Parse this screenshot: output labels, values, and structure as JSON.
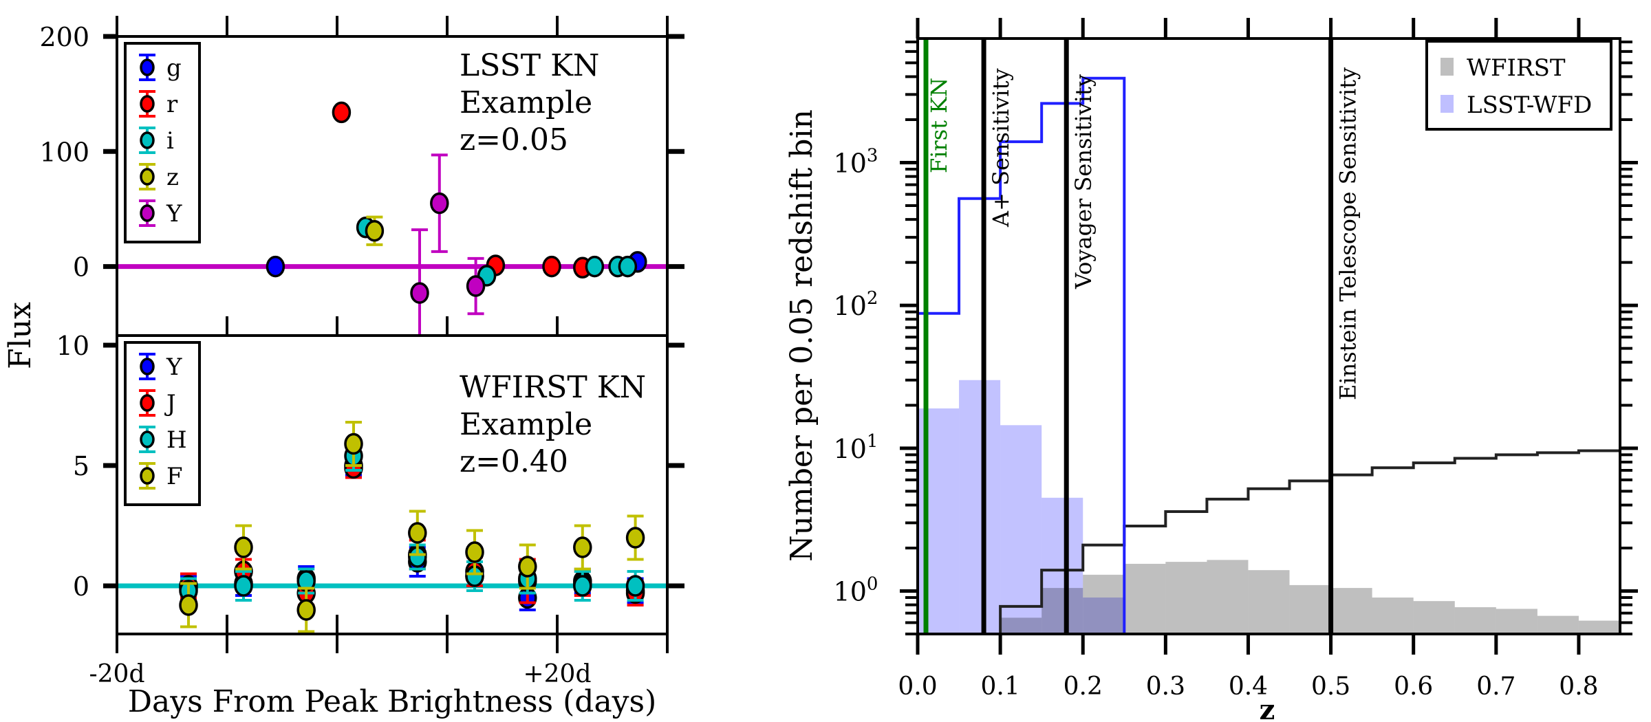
{
  "chart_data": [
    {
      "id": "lsst-lightcurve",
      "type": "scatter",
      "title": "",
      "annotation": [
        "LSST KN",
        "Example",
        "z=0.05"
      ],
      "xlabel": "Days From Peak Brightness (days)",
      "ylabel": "Flux",
      "xlim": [
        -20,
        30
      ],
      "ylim": [
        -60,
        200
      ],
      "xticks": [
        -20,
        -10,
        0,
        10,
        20,
        30
      ],
      "xtick_labels": [
        "-20d",
        "",
        "",
        "",
        "+20d",
        ""
      ],
      "yticks": [
        0,
        100,
        200
      ],
      "ytick_labels": [
        "0",
        "100",
        "200"
      ],
      "zero_line_color": "#c000c0",
      "legend_position": "top-left",
      "series": [
        {
          "name": "g",
          "color": "#0000ff",
          "points": [
            {
              "x": -5.6,
              "y": 0,
              "err": 3
            },
            {
              "x": 27.3,
              "y": 4,
              "err": 3
            }
          ]
        },
        {
          "name": "r",
          "color": "#ff0000",
          "points": [
            {
              "x": 0.4,
              "y": 134,
              "err": 3
            },
            {
              "x": 14.4,
              "y": 1,
              "err": 3
            },
            {
              "x": 19.5,
              "y": 0,
              "err": 3
            },
            {
              "x": 22.3,
              "y": -1,
              "err": 3
            }
          ]
        },
        {
          "name": "i",
          "color": "#00c0c0",
          "points": [
            {
              "x": 2.6,
              "y": 34,
              "err": 4
            },
            {
              "x": 13.6,
              "y": -8,
              "err": 4
            },
            {
              "x": 23.4,
              "y": 0,
              "err": 3
            },
            {
              "x": 25.5,
              "y": 0,
              "err": 3
            },
            {
              "x": 26.4,
              "y": 0,
              "err": 3
            }
          ]
        },
        {
          "name": "z",
          "color": "#c0c000",
          "points": [
            {
              "x": 3.4,
              "y": 31,
              "err": 12
            }
          ]
        },
        {
          "name": "Y",
          "color": "#c000c0",
          "points": [
            {
              "x": 7.5,
              "y": -23,
              "err": 55
            },
            {
              "x": 9.3,
              "y": 55,
              "err": 42
            },
            {
              "x": 12.6,
              "y": -17,
              "err": 24
            }
          ]
        }
      ]
    },
    {
      "id": "wfirst-lightcurve",
      "type": "scatter",
      "title": "",
      "annotation": [
        "WFIRST KN",
        "Example",
        "z=0.40"
      ],
      "xlabel": "Days From Peak Brightness (days)",
      "ylabel": "Flux",
      "xlim": [
        -20,
        30
      ],
      "ylim": [
        -2,
        10.4
      ],
      "xticks": [
        -20,
        -10,
        0,
        10,
        20,
        30
      ],
      "xtick_labels": [
        "-20d",
        "",
        "",
        "",
        "+20d",
        ""
      ],
      "yticks": [
        0,
        5,
        10
      ],
      "ytick_labels": [
        "0",
        "5",
        "10"
      ],
      "zero_line_color": "#00c0c0",
      "legend_position": "top-left",
      "series": [
        {
          "name": "Y",
          "color": "#0000ff",
          "points": [
            {
              "x": -13.5,
              "y": -0.1,
              "err": 0.5
            },
            {
              "x": -8.5,
              "y": 0.1,
              "err": 0.5
            },
            {
              "x": -2.8,
              "y": 0.3,
              "err": 0.5
            },
            {
              "x": 1.5,
              "y": 5.0,
              "err": 0.4
            },
            {
              "x": 7.3,
              "y": 1.0,
              "err": 0.6
            },
            {
              "x": 12.5,
              "y": 0.4,
              "err": 0.6
            },
            {
              "x": 17.3,
              "y": -0.5,
              "err": 0.5
            },
            {
              "x": 22.3,
              "y": 0.2,
              "err": 0.5
            },
            {
              "x": 27.1,
              "y": -0.2,
              "err": 0.5
            }
          ]
        },
        {
          "name": "J",
          "color": "#ff0000",
          "points": [
            {
              "x": -13.5,
              "y": 0.0,
              "err": 0.5
            },
            {
              "x": -8.5,
              "y": 0.6,
              "err": 0.5
            },
            {
              "x": -2.8,
              "y": -0.3,
              "err": 0.5
            },
            {
              "x": 1.5,
              "y": 4.9,
              "err": 0.4
            },
            {
              "x": 7.3,
              "y": 1.3,
              "err": 0.6
            },
            {
              "x": 12.5,
              "y": 0.6,
              "err": 0.6
            },
            {
              "x": 17.3,
              "y": 0.2,
              "err": 0.9
            },
            {
              "x": 22.3,
              "y": 0.1,
              "err": 0.5
            },
            {
              "x": 27.1,
              "y": -0.3,
              "err": 0.5
            }
          ]
        },
        {
          "name": "H",
          "color": "#00c0c0",
          "points": [
            {
              "x": -13.5,
              "y": -0.2,
              "err": 0.5
            },
            {
              "x": -8.5,
              "y": 0.0,
              "err": 0.6
            },
            {
              "x": -2.8,
              "y": 0.2,
              "err": 0.5
            },
            {
              "x": 1.5,
              "y": 5.4,
              "err": 0.6
            },
            {
              "x": 7.3,
              "y": 1.2,
              "err": 0.5
            },
            {
              "x": 12.5,
              "y": 0.4,
              "err": 0.6
            },
            {
              "x": 17.3,
              "y": 0.3,
              "err": 0.6
            },
            {
              "x": 22.3,
              "y": 0.0,
              "err": 0.6
            },
            {
              "x": 27.1,
              "y": 0.0,
              "err": 0.6
            }
          ]
        },
        {
          "name": "F",
          "color": "#c0c000",
          "points": [
            {
              "x": -13.5,
              "y": -0.8,
              "err": 0.9
            },
            {
              "x": -8.5,
              "y": 1.6,
              "err": 0.9
            },
            {
              "x": -2.8,
              "y": -1.0,
              "err": 0.9
            },
            {
              "x": 1.5,
              "y": 5.9,
              "err": 0.9
            },
            {
              "x": 7.3,
              "y": 2.2,
              "err": 0.9
            },
            {
              "x": 12.5,
              "y": 1.4,
              "err": 0.9
            },
            {
              "x": 17.3,
              "y": 0.8,
              "err": 0.9
            },
            {
              "x": 22.3,
              "y": 1.6,
              "err": 0.9
            },
            {
              "x": 27.1,
              "y": 2.0,
              "err": 0.9
            }
          ]
        }
      ]
    },
    {
      "id": "redshift-histogram",
      "type": "bar",
      "title": "",
      "xlabel": "z",
      "ylabel": "Number per 0.05 redshift bin",
      "xlim": [
        0,
        0.85
      ],
      "ylim": [
        0.5,
        7400
      ],
      "yscale": "log",
      "xticks": [
        0.0,
        0.1,
        0.2,
        0.3,
        0.4,
        0.5,
        0.6,
        0.7,
        0.8
      ],
      "xtick_labels": [
        "0.0",
        "0.1",
        "0.2",
        "0.3",
        "0.4",
        "0.5",
        "0.6",
        "0.7",
        "0.8"
      ],
      "yticks": [
        1,
        10,
        100,
        1000
      ],
      "ytick_labels": [
        "10",
        "10",
        "10",
        "10"
      ],
      "ytick_exponents": [
        "0",
        "1",
        "2",
        "3"
      ],
      "legend_position": "top-right",
      "bin_edges": [
        0.0,
        0.05,
        0.1,
        0.15,
        0.2,
        0.25,
        0.3,
        0.35,
        0.4,
        0.45,
        0.5,
        0.55,
        0.6,
        0.65,
        0.7,
        0.75,
        0.8,
        0.85
      ],
      "series": [
        {
          "name": "WFIRST",
          "kind": "filled",
          "color": "#bfbfbf",
          "values": [
            0,
            0,
            0.65,
            1.05,
            1.3,
            1.55,
            1.6,
            1.65,
            1.4,
            1.1,
            1.05,
            0.9,
            0.85,
            0.77,
            0.75,
            0.67,
            0.62
          ]
        },
        {
          "name": "LSST-WFD",
          "kind": "filled",
          "color": "#bfbfff",
          "values": [
            19,
            30,
            14.5,
            4.5,
            0.9,
            0,
            0,
            0,
            0,
            0,
            0,
            0,
            0,
            0,
            0,
            0,
            0
          ]
        },
        {
          "name": "WFIRST cumulative",
          "kind": "step",
          "color": "#222222",
          "values": [
            null,
            null,
            0.78,
            1.4,
            2.1,
            2.85,
            3.6,
            4.4,
            5.2,
            5.9,
            6.5,
            7.3,
            7.9,
            8.5,
            9.0,
            9.3,
            9.6
          ]
        },
        {
          "name": "LSST-WFD cumulative",
          "kind": "step",
          "color": "#2020ff",
          "values": [
            88,
            560,
            1400,
            2600,
            3900,
            null,
            null,
            null,
            null,
            null,
            null,
            null,
            null,
            null,
            null,
            null,
            null
          ]
        }
      ],
      "legend": [
        {
          "label": "WFIRST",
          "color": "#bfbfbf"
        },
        {
          "label": "LSST-WFD",
          "color": "#bfbfff"
        }
      ],
      "vlines": [
        {
          "x": 0.01,
          "label": "First KN",
          "color": "#008000"
        },
        {
          "x": 0.08,
          "label": "A+ Sensitivity",
          "color": "#000000"
        },
        {
          "x": 0.18,
          "label": "Voyager Sensitivity",
          "color": "#000000"
        },
        {
          "x": 0.5,
          "label": "Einstein Telescope Sensitivity",
          "color": "#000000"
        }
      ]
    }
  ]
}
